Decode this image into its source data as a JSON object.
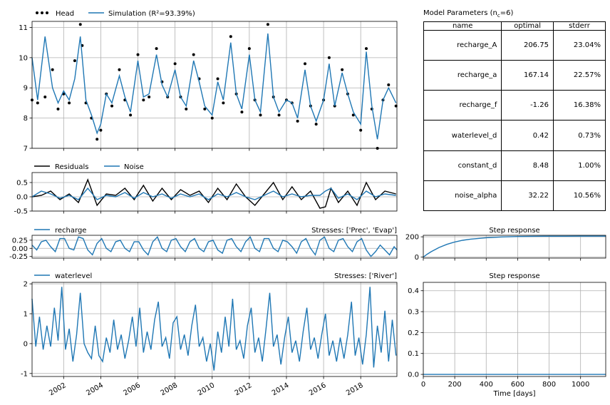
{
  "chart_data": [
    {
      "type": "line",
      "panel": "head-simulation",
      "legend": [
        "Head",
        "Simulation (R²=93.39%)"
      ],
      "legend_placement": "top-left-outside",
      "ylim": [
        7,
        11.2
      ],
      "yticks": [
        "7",
        "8",
        "9",
        "10",
        "11"
      ],
      "x_range": [
        2000.3,
        2019.95
      ],
      "grid": true,
      "series": [
        {
          "name": "Head",
          "style": "black dots",
          "x": [
            2000.3,
            2000.6,
            2001.0,
            2001.4,
            2001.7,
            2002.0,
            2002.3,
            2002.6,
            2002.9,
            2003.0,
            2003.2,
            2003.5,
            2003.8,
            2004.0,
            2004.3,
            2004.6,
            2005.0,
            2005.3,
            2005.6,
            2006.0,
            2006.3,
            2006.6,
            2007.0,
            2007.3,
            2007.6,
            2008.0,
            2008.3,
            2008.6,
            2009.0,
            2009.3,
            2009.6,
            2010.0,
            2010.3,
            2010.6,
            2011.0,
            2011.3,
            2011.6,
            2012.0,
            2012.3,
            2012.6,
            2013.0,
            2013.3,
            2013.6,
            2014.0,
            2014.3,
            2014.6,
            2015.0,
            2015.3,
            2015.6,
            2016.0,
            2016.3,
            2016.6,
            2017.0,
            2017.3,
            2017.6,
            2018.0,
            2018.3,
            2018.6,
            2018.9,
            2019.2,
            2019.5,
            2019.9
          ],
          "y": [
            8.6,
            8.5,
            8.7,
            9.6,
            8.3,
            8.8,
            8.5,
            9.9,
            11.1,
            10.4,
            8.5,
            8.0,
            7.3,
            7.6,
            8.8,
            8.4,
            9.6,
            8.6,
            8.1,
            10.1,
            8.6,
            8.7,
            10.3,
            9.2,
            8.7,
            9.8,
            8.7,
            8.3,
            10.1,
            9.3,
            8.3,
            8.0,
            9.3,
            8.5,
            10.7,
            8.8,
            8.2,
            10.3,
            8.6,
            8.1,
            11.1,
            8.7,
            8.1,
            8.6,
            8.5,
            7.9,
            9.8,
            8.4,
            7.8,
            8.6,
            10.0,
            8.4,
            9.6,
            8.8,
            8.1,
            7.6,
            10.3,
            8.3,
            7.0,
            8.6,
            9.1,
            8.4
          ]
        },
        {
          "name": "Simulation",
          "style": "blue line",
          "x": [
            2000.3,
            2000.6,
            2001.0,
            2001.4,
            2001.7,
            2002.0,
            2002.3,
            2002.6,
            2002.9,
            2003.0,
            2003.2,
            2003.5,
            2003.8,
            2004.0,
            2004.3,
            2004.6,
            2005.0,
            2005.3,
            2005.6,
            2006.0,
            2006.3,
            2006.6,
            2007.0,
            2007.3,
            2007.6,
            2008.0,
            2008.3,
            2008.6,
            2009.0,
            2009.3,
            2009.6,
            2010.0,
            2010.3,
            2010.6,
            2011.0,
            2011.3,
            2011.6,
            2012.0,
            2012.3,
            2012.6,
            2013.0,
            2013.3,
            2013.6,
            2014.0,
            2014.3,
            2014.6,
            2015.0,
            2015.3,
            2015.6,
            2016.0,
            2016.3,
            2016.6,
            2017.0,
            2017.3,
            2017.6,
            2018.0,
            2018.3,
            2018.6,
            2018.9,
            2019.2,
            2019.5,
            2019.9
          ],
          "y": [
            10.0,
            8.6,
            10.7,
            9.0,
            8.5,
            8.9,
            8.6,
            9.3,
            10.7,
            10.0,
            8.6,
            8.1,
            7.5,
            7.8,
            8.8,
            8.5,
            9.4,
            8.7,
            8.2,
            9.9,
            8.7,
            8.8,
            10.1,
            9.1,
            8.7,
            9.6,
            8.7,
            8.4,
            9.9,
            9.2,
            8.4,
            8.1,
            9.2,
            8.6,
            10.5,
            8.8,
            8.3,
            10.1,
            8.6,
            8.2,
            10.8,
            8.7,
            8.2,
            8.6,
            8.5,
            8.0,
            9.6,
            8.4,
            7.9,
            8.6,
            9.8,
            8.4,
            9.5,
            8.8,
            8.2,
            7.8,
            10.2,
            8.4,
            7.3,
            8.6,
            9.0,
            8.5
          ]
        }
      ]
    },
    {
      "type": "line",
      "panel": "residuals-noise",
      "legend": [
        "Residuals",
        "Noise"
      ],
      "ylim": [
        -0.5,
        0.85
      ],
      "yticks": [
        "-0.5",
        "0.0",
        "0.5"
      ],
      "x_range": [
        2000.3,
        2019.95
      ],
      "grid": true,
      "series": [
        {
          "name": "Residuals",
          "style": "black line",
          "x": [
            2000.3,
            2000.8,
            2001.3,
            2001.8,
            2002.3,
            2002.8,
            2003.3,
            2003.8,
            2004.3,
            2004.8,
            2005.3,
            2005.8,
            2006.3,
            2006.8,
            2007.3,
            2007.8,
            2008.3,
            2008.8,
            2009.3,
            2009.8,
            2010.3,
            2010.8,
            2011.3,
            2011.8,
            2012.3,
            2012.8,
            2013.3,
            2013.8,
            2014.3,
            2014.8,
            2015.3,
            2015.8,
            2016.1,
            2016.4,
            2016.8,
            2017.3,
            2017.8,
            2018.3,
            2018.8,
            2019.3,
            2019.9
          ],
          "y": [
            0.0,
            0.05,
            0.2,
            -0.1,
            0.1,
            -0.2,
            0.6,
            -0.3,
            0.1,
            0.05,
            0.3,
            -0.1,
            0.4,
            -0.15,
            0.3,
            -0.1,
            0.25,
            0.05,
            0.2,
            -0.2,
            0.3,
            -0.1,
            0.45,
            0.0,
            -0.3,
            0.1,
            0.5,
            -0.1,
            0.35,
            -0.1,
            0.2,
            -0.4,
            -0.35,
            0.3,
            -0.2,
            0.2,
            -0.3,
            0.5,
            -0.1,
            0.2,
            0.1
          ]
        },
        {
          "name": "Noise",
          "style": "blue line",
          "x": [
            2000.3,
            2000.8,
            2001.3,
            2001.8,
            2002.3,
            2002.8,
            2003.3,
            2003.8,
            2004.3,
            2004.8,
            2005.3,
            2005.8,
            2006.3,
            2006.8,
            2007.3,
            2007.8,
            2008.3,
            2008.8,
            2009.3,
            2009.8,
            2010.3,
            2010.8,
            2011.3,
            2011.8,
            2012.3,
            2012.8,
            2013.3,
            2013.8,
            2014.3,
            2014.8,
            2015.3,
            2015.8,
            2016.1,
            2016.4,
            2016.8,
            2017.3,
            2017.8,
            2018.3,
            2018.8,
            2019.3,
            2019.9
          ],
          "y": [
            0.0,
            0.2,
            0.1,
            -0.05,
            0.05,
            -0.1,
            0.3,
            -0.1,
            0.05,
            0.0,
            0.15,
            -0.05,
            0.15,
            0.0,
            0.1,
            -0.05,
            0.1,
            0.0,
            0.1,
            -0.1,
            0.1,
            0.0,
            0.15,
            0.0,
            -0.1,
            0.05,
            0.2,
            0.0,
            0.1,
            0.0,
            0.05,
            0.05,
            0.2,
            0.3,
            -0.05,
            0.1,
            -0.1,
            0.2,
            0.0,
            0.1,
            0.05
          ]
        }
      ]
    },
    {
      "type": "line",
      "panel": "recharge",
      "legend": [
        "recharge"
      ],
      "right_title": "Stresses: ['Prec', 'Evap']",
      "ylim": [
        -0.3,
        0.4
      ],
      "yticks": [
        "-0.25",
        "0.00",
        "0.25"
      ],
      "x_range": [
        2000.3,
        2019.95
      ],
      "grid": true,
      "series": [
        {
          "name": "recharge",
          "style": "blue line",
          "x": [
            2000.3,
            2000.55,
            2000.8,
            2001.05,
            2001.3,
            2001.55,
            2001.8,
            2002.05,
            2002.3,
            2002.55,
            2002.8,
            2003.05,
            2003.3,
            2003.55,
            2003.8,
            2004.05,
            2004.3,
            2004.55,
            2004.8,
            2005.05,
            2005.3,
            2005.55,
            2005.8,
            2006.05,
            2006.3,
            2006.55,
            2006.8,
            2007.05,
            2007.3,
            2007.55,
            2007.8,
            2008.05,
            2008.3,
            2008.55,
            2008.8,
            2009.05,
            2009.3,
            2009.55,
            2009.8,
            2010.05,
            2010.3,
            2010.55,
            2010.8,
            2011.05,
            2011.3,
            2011.55,
            2011.8,
            2012.05,
            2012.3,
            2012.55,
            2012.8,
            2013.05,
            2013.3,
            2013.55,
            2013.8,
            2014.05,
            2014.3,
            2014.55,
            2014.8,
            2015.05,
            2015.3,
            2015.55,
            2015.8,
            2016.05,
            2016.3,
            2016.55,
            2016.8,
            2017.05,
            2017.3,
            2017.55,
            2017.8,
            2018.05,
            2018.3,
            2018.55,
            2018.8,
            2019.05,
            2019.3,
            2019.55,
            2019.8,
            2019.95
          ],
          "y": [
            0.1,
            -0.05,
            0.2,
            0.25,
            0.05,
            -0.1,
            0.3,
            0.3,
            0.0,
            -0.05,
            0.35,
            0.3,
            -0.05,
            -0.2,
            0.15,
            0.3,
            0.0,
            -0.1,
            0.2,
            0.25,
            0.0,
            -0.1,
            0.2,
            0.2,
            -0.05,
            -0.2,
            0.2,
            0.35,
            0.0,
            -0.1,
            0.25,
            0.3,
            0.05,
            -0.1,
            0.2,
            0.3,
            0.0,
            -0.1,
            0.2,
            0.25,
            -0.05,
            -0.15,
            0.25,
            0.3,
            0.05,
            -0.1,
            0.2,
            0.35,
            0.0,
            -0.1,
            0.3,
            0.3,
            0.0,
            -0.1,
            0.25,
            0.2,
            0.05,
            -0.15,
            0.2,
            0.3,
            0.0,
            -0.2,
            0.25,
            0.35,
            0.0,
            -0.1,
            0.25,
            0.3,
            0.05,
            -0.1,
            0.2,
            0.3,
            -0.05,
            -0.25,
            -0.1,
            0.1,
            -0.05,
            -0.2,
            0.05,
            -0.05
          ]
        }
      ]
    },
    {
      "type": "line",
      "panel": "waterlevel",
      "legend": [
        "waterlevel"
      ],
      "right_title": "Stresses: ['River']",
      "ylim": [
        -1.1,
        2.05
      ],
      "yticks": [
        "-1",
        "0",
        "1",
        "2"
      ],
      "x_range": [
        2000.3,
        2019.95
      ],
      "xticks": [
        "2002",
        "2004",
        "2006",
        "2008",
        "2010",
        "2012",
        "2014",
        "2016",
        "2018"
      ],
      "grid": true,
      "series": [
        {
          "name": "waterlevel",
          "style": "blue line",
          "x": [
            2000.3,
            2000.5,
            2000.7,
            2000.9,
            2001.1,
            2001.3,
            2001.5,
            2001.7,
            2001.9,
            2002.1,
            2002.3,
            2002.5,
            2002.7,
            2002.9,
            2003.1,
            2003.3,
            2003.5,
            2003.7,
            2003.9,
            2004.1,
            2004.3,
            2004.5,
            2004.7,
            2004.9,
            2005.1,
            2005.3,
            2005.5,
            2005.7,
            2005.9,
            2006.1,
            2006.3,
            2006.5,
            2006.7,
            2006.9,
            2007.1,
            2007.3,
            2007.5,
            2007.7,
            2007.9,
            2008.1,
            2008.3,
            2008.5,
            2008.7,
            2008.9,
            2009.1,
            2009.3,
            2009.5,
            2009.7,
            2009.9,
            2010.1,
            2010.3,
            2010.5,
            2010.7,
            2010.9,
            2011.1,
            2011.3,
            2011.5,
            2011.7,
            2011.9,
            2012.1,
            2012.3,
            2012.5,
            2012.7,
            2012.9,
            2013.1,
            2013.3,
            2013.5,
            2013.7,
            2013.9,
            2014.1,
            2014.3,
            2014.5,
            2014.7,
            2014.9,
            2015.1,
            2015.3,
            2015.5,
            2015.7,
            2015.9,
            2016.1,
            2016.3,
            2016.5,
            2016.7,
            2016.9,
            2017.1,
            2017.3,
            2017.5,
            2017.7,
            2017.9,
            2018.1,
            2018.3,
            2018.5,
            2018.7,
            2018.9,
            2019.1,
            2019.3,
            2019.5,
            2019.7,
            2019.9
          ],
          "y": [
            1.5,
            -0.1,
            0.9,
            -0.2,
            0.6,
            -0.1,
            1.2,
            0.1,
            1.9,
            -0.2,
            0.5,
            -0.6,
            0.3,
            1.7,
            0.0,
            -0.3,
            -0.5,
            0.6,
            -0.4,
            -0.6,
            0.2,
            -0.3,
            0.8,
            -0.2,
            0.3,
            -0.5,
            0.1,
            0.9,
            -0.1,
            1.2,
            -0.3,
            0.4,
            -0.2,
            0.8,
            1.4,
            -0.1,
            0.2,
            -0.5,
            0.7,
            0.9,
            -0.2,
            0.3,
            -0.4,
            0.6,
            1.3,
            -0.1,
            0.2,
            -0.6,
            0.0,
            -0.9,
            0.4,
            -0.3,
            0.9,
            -0.1,
            1.5,
            -0.2,
            0.1,
            -0.5,
            0.6,
            1.2,
            -0.3,
            0.2,
            -0.6,
            0.5,
            1.7,
            -0.1,
            0.3,
            -0.7,
            0.2,
            0.9,
            -0.3,
            0.1,
            -0.6,
            0.4,
            1.2,
            -0.2,
            0.2,
            -0.5,
            0.3,
            1.0,
            -0.4,
            0.1,
            -0.6,
            0.2,
            -0.5,
            0.3,
            1.4,
            -0.4,
            0.2,
            -0.7,
            0.3,
            1.9,
            -0.8,
            0.6,
            -0.3,
            1.1,
            -0.6,
            0.8,
            -0.4
          ]
        }
      ]
    },
    {
      "type": "line",
      "panel": "step-response-recharge",
      "title": "Step response",
      "ylim": [
        -10,
        215
      ],
      "yticks": [
        "0",
        "200"
      ],
      "xlim": [
        0,
        1160
      ],
      "grid": true,
      "series": [
        {
          "name": "recharge step",
          "style": "blue line",
          "x": [
            0,
            25,
            50,
            100,
            150,
            200,
            250,
            300,
            400,
            500,
            600,
            700,
            800,
            900,
            1000,
            1160
          ],
          "y": [
            0,
            29,
            53,
            95,
            126,
            149,
            166,
            177,
            191,
            199,
            203,
            205,
            206,
            206,
            206.5,
            206.75
          ]
        }
      ]
    },
    {
      "type": "line",
      "panel": "step-response-waterlevel",
      "title": "Step response",
      "ylim": [
        -0.01,
        0.44
      ],
      "yticks": [
        "0.0",
        "0.1",
        "0.2",
        "0.3",
        "0.4"
      ],
      "xlim": [
        0,
        1160
      ],
      "xticks": [
        "0",
        "200",
        "400",
        "600",
        "800",
        "1000"
      ],
      "xlabel": "Time [days]",
      "grid": true,
      "series": [
        {
          "name": "waterlevel step",
          "style": "blue line",
          "x": [
            0,
            1160
          ],
          "y": [
            0.0,
            0.0
          ]
        }
      ]
    }
  ],
  "parameters": {
    "title": "Model Parameters (n",
    "title_sub": "c",
    "title_tail": "=6)",
    "columns": [
      "name",
      "optimal",
      "stderr"
    ],
    "rows": [
      [
        "recharge_A",
        "206.75",
        "23.04%"
      ],
      [
        "recharge_a",
        "167.14",
        "22.57%"
      ],
      [
        "recharge_f",
        "-1.26",
        "16.38%"
      ],
      [
        "waterlevel_d",
        "0.42",
        "0.73%"
      ],
      [
        "constant_d",
        "8.48",
        "1.00%"
      ],
      [
        "noise_alpha",
        "32.22",
        "10.56%"
      ]
    ]
  },
  "colors": {
    "head": "#000000",
    "simulation": "#1f77b4",
    "grid": "#b0b0b0"
  }
}
